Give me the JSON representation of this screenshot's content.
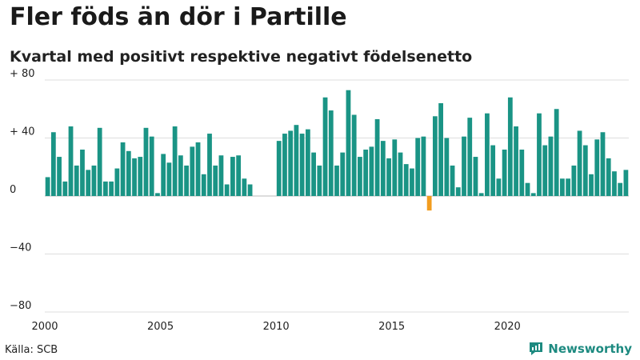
{
  "header": {
    "title": "Fler föds än dör i Partille",
    "subtitle": "Kvartal med positivt respektive negativt födelsenetto"
  },
  "footer": {
    "source": "Källa: SCB",
    "brand": "Newsworthy"
  },
  "colors": {
    "positive": "#1a9485",
    "negative": "#f29d1f",
    "grid": "#dddddd",
    "brand": "#1d8a80"
  },
  "chart_data": {
    "type": "bar",
    "title": "Fler föds än dör i Partille",
    "subtitle": "Kvartal med positivt respektive negativt födelsenetto",
    "xlabel": "",
    "ylabel": "",
    "ylim": [
      -80,
      80
    ],
    "yticks": [
      80,
      40,
      0,
      -40,
      -80
    ],
    "ytick_labels": [
      "+ 80",
      "+ 40",
      "0",
      "−40",
      "−80"
    ],
    "xticks": [
      "2000",
      "2005",
      "2010",
      "2015",
      "2020"
    ],
    "start_year": 2000,
    "quarters_per_year": 4,
    "values": [
      13,
      44,
      27,
      10,
      48,
      21,
      32,
      18,
      21,
      47,
      10,
      10,
      19,
      37,
      31,
      26,
      27,
      47,
      41,
      2,
      29,
      23,
      48,
      28,
      21,
      34,
      37,
      15,
      43,
      21,
      28,
      8,
      27,
      28,
      12,
      8,
      0,
      0,
      0,
      0,
      38,
      43,
      45,
      49,
      43,
      46,
      30,
      21,
      68,
      59,
      21,
      30,
      73,
      56,
      27,
      32,
      34,
      53,
      38,
      26,
      39,
      30,
      22,
      19,
      40,
      41,
      -10,
      55,
      64,
      40,
      21,
      6,
      41,
      54,
      27,
      2,
      57,
      35,
      12,
      32,
      68,
      48,
      32,
      9,
      2,
      57,
      35,
      41,
      60,
      12,
      12,
      21,
      45,
      35,
      15,
      39,
      44,
      26,
      17,
      9,
      18
    ]
  }
}
